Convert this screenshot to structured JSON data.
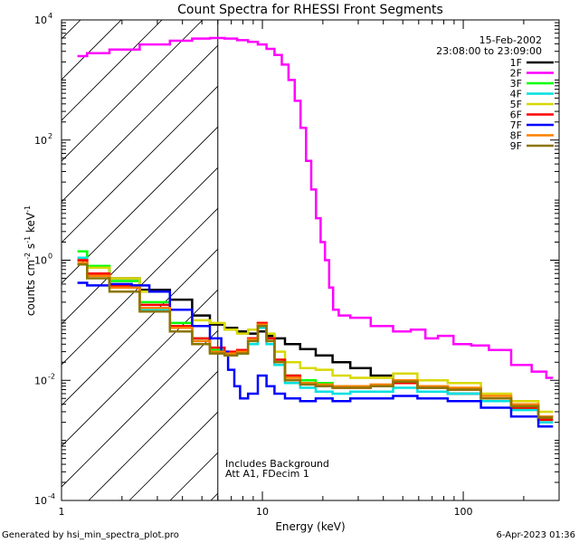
{
  "chart_data": {
    "type": "line",
    "title": "Count Spectra for RHESSI Front Segments",
    "xlabel": "Energy (keV)",
    "ylabel_parts": [
      "counts cm",
      "-2",
      " s",
      "-1",
      " keV",
      "-1"
    ],
    "x_scale": "log",
    "y_scale": "log",
    "xlim": [
      1,
      300
    ],
    "ylim": [
      0.0001,
      10000
    ],
    "x_tick_labels": [
      {
        "value": 1,
        "label": "1"
      },
      {
        "value": 10,
        "label": "10"
      },
      {
        "value": 100,
        "label": "100"
      }
    ],
    "y_tick_labels": [
      {
        "value": 10000,
        "base": "10",
        "exp": "4"
      },
      {
        "value": 100,
        "base": "10",
        "exp": "2"
      },
      {
        "value": 1,
        "base": "10",
        "exp": "0"
      },
      {
        "value": 0.01,
        "base": "10",
        "exp": "-2"
      },
      {
        "value": 0.0001,
        "base": "10",
        "exp": "-4"
      }
    ],
    "date": "15-Feb-2002",
    "time_range": "23:08:00 to 23:09:00",
    "annotations": [
      "Includes Background",
      "Att A1, FDecim  1"
    ],
    "attenuator_cutoff_kev": 6,
    "footer_left": "Generated by hsi_min_spectra_plot.pro",
    "footer_right": "6-Apr-2023 01:36",
    "series": [
      {
        "name": "1F",
        "color": "#000000",
        "points": [
          [
            1.2,
            1.0
          ],
          [
            1.5,
            0.75
          ],
          [
            2,
            0.5
          ],
          [
            3,
            0.32
          ],
          [
            4,
            0.22
          ],
          [
            5,
            0.12
          ],
          [
            6,
            0.085
          ],
          [
            7,
            0.075
          ],
          [
            8,
            0.065
          ],
          [
            9,
            0.06
          ],
          [
            10,
            0.065
          ],
          [
            11,
            0.055
          ],
          [
            12,
            0.05
          ],
          [
            14,
            0.04
          ],
          [
            17,
            0.033
          ],
          [
            20,
            0.026
          ],
          [
            25,
            0.02
          ],
          [
            30,
            0.016
          ],
          [
            40,
            0.012
          ],
          [
            50,
            0.01
          ],
          [
            70,
            0.008
          ],
          [
            100,
            0.006
          ],
          [
            150,
            0.0045
          ],
          [
            200,
            0.0035
          ],
          [
            280,
            0.0025
          ]
        ]
      },
      {
        "name": "2F",
        "color": "#ff00ff",
        "points": [
          [
            1.2,
            2500
          ],
          [
            1.5,
            2800
          ],
          [
            2,
            3200
          ],
          [
            3,
            3900
          ],
          [
            4,
            4500
          ],
          [
            5,
            4900
          ],
          [
            6,
            5000
          ],
          [
            7,
            4900
          ],
          [
            8,
            4600
          ],
          [
            9,
            4300
          ],
          [
            10,
            3900
          ],
          [
            11,
            3300
          ],
          [
            12,
            2600
          ],
          [
            13,
            1800
          ],
          [
            14,
            1000
          ],
          [
            15,
            450
          ],
          [
            16,
            160
          ],
          [
            17,
            45
          ],
          [
            18,
            15
          ],
          [
            19,
            5
          ],
          [
            20,
            2
          ],
          [
            21,
            1.0
          ],
          [
            22,
            0.35
          ],
          [
            23,
            0.15
          ],
          [
            25,
            0.12
          ],
          [
            30,
            0.11
          ],
          [
            40,
            0.08
          ],
          [
            50,
            0.065
          ],
          [
            60,
            0.07
          ],
          [
            70,
            0.05
          ],
          [
            80,
            0.055
          ],
          [
            100,
            0.04
          ],
          [
            120,
            0.038
          ],
          [
            150,
            0.032
          ],
          [
            200,
            0.018
          ],
          [
            240,
            0.014
          ],
          [
            280,
            0.011
          ]
        ]
      },
      {
        "name": "3F",
        "color": "#00ff00",
        "points": [
          [
            1.2,
            1.4
          ],
          [
            1.5,
            0.8
          ],
          [
            2,
            0.45
          ],
          [
            3,
            0.2
          ],
          [
            4,
            0.09
          ],
          [
            5,
            0.05
          ],
          [
            6,
            0.032
          ],
          [
            7,
            0.028
          ],
          [
            8,
            0.03
          ],
          [
            9,
            0.045
          ],
          [
            10,
            0.085
          ],
          [
            11,
            0.05
          ],
          [
            12,
            0.022
          ],
          [
            14,
            0.012
          ],
          [
            17,
            0.01
          ],
          [
            20,
            0.009
          ],
          [
            25,
            0.008
          ],
          [
            30,
            0.008
          ],
          [
            40,
            0.008
          ],
          [
            50,
            0.009
          ],
          [
            70,
            0.0075
          ],
          [
            100,
            0.007
          ],
          [
            150,
            0.005
          ],
          [
            200,
            0.0035
          ],
          [
            280,
            0.0022
          ]
        ]
      },
      {
        "name": "4F",
        "color": "#00e0e0",
        "points": [
          [
            1.2,
            1.1
          ],
          [
            1.5,
            0.6
          ],
          [
            2,
            0.35
          ],
          [
            3,
            0.15
          ],
          [
            4,
            0.075
          ],
          [
            5,
            0.045
          ],
          [
            6,
            0.03
          ],
          [
            7,
            0.026
          ],
          [
            8,
            0.028
          ],
          [
            9,
            0.04
          ],
          [
            10,
            0.075
          ],
          [
            11,
            0.04
          ],
          [
            12,
            0.018
          ],
          [
            14,
            0.009
          ],
          [
            17,
            0.0075
          ],
          [
            20,
            0.0065
          ],
          [
            25,
            0.006
          ],
          [
            30,
            0.0065
          ],
          [
            40,
            0.0065
          ],
          [
            50,
            0.0075
          ],
          [
            70,
            0.0065
          ],
          [
            100,
            0.006
          ],
          [
            150,
            0.0045
          ],
          [
            200,
            0.0032
          ],
          [
            280,
            0.002
          ]
        ]
      },
      {
        "name": "5F",
        "color": "#d8d800",
        "points": [
          [
            1.2,
            1.0
          ],
          [
            1.5,
            0.75
          ],
          [
            2,
            0.5
          ],
          [
            3,
            0.3
          ],
          [
            4,
            0.15
          ],
          [
            5,
            0.1
          ],
          [
            6,
            0.09
          ],
          [
            7,
            0.07
          ],
          [
            8,
            0.06
          ],
          [
            9,
            0.07
          ],
          [
            10,
            0.09
          ],
          [
            11,
            0.06
          ],
          [
            12,
            0.03
          ],
          [
            14,
            0.02
          ],
          [
            17,
            0.016
          ],
          [
            20,
            0.015
          ],
          [
            25,
            0.012
          ],
          [
            30,
            0.011
          ],
          [
            40,
            0.011
          ],
          [
            50,
            0.013
          ],
          [
            70,
            0.01
          ],
          [
            100,
            0.009
          ],
          [
            150,
            0.006
          ],
          [
            200,
            0.0045
          ],
          [
            280,
            0.003
          ]
        ]
      },
      {
        "name": "6F",
        "color": "#ff0000",
        "points": [
          [
            1.2,
            1.0
          ],
          [
            1.5,
            0.6
          ],
          [
            2,
            0.38
          ],
          [
            3,
            0.18
          ],
          [
            4,
            0.08
          ],
          [
            5,
            0.05
          ],
          [
            6,
            0.035
          ],
          [
            7,
            0.03
          ],
          [
            8,
            0.032
          ],
          [
            9,
            0.05
          ],
          [
            10,
            0.09
          ],
          [
            11,
            0.05
          ],
          [
            12,
            0.022
          ],
          [
            14,
            0.012
          ],
          [
            17,
            0.009
          ],
          [
            20,
            0.008
          ],
          [
            25,
            0.0075
          ],
          [
            30,
            0.0075
          ],
          [
            40,
            0.008
          ],
          [
            50,
            0.009
          ],
          [
            70,
            0.0075
          ],
          [
            100,
            0.007
          ],
          [
            150,
            0.005
          ],
          [
            200,
            0.0035
          ],
          [
            280,
            0.0022
          ]
        ]
      },
      {
        "name": "7F",
        "color": "#0000ff",
        "points": [
          [
            1.2,
            0.42
          ],
          [
            1.5,
            0.38
          ],
          [
            2,
            0.4
          ],
          [
            2.5,
            0.38
          ],
          [
            3,
            0.3
          ],
          [
            4,
            0.15
          ],
          [
            5,
            0.08
          ],
          [
            6,
            0.05
          ],
          [
            6.5,
            0.03
          ],
          [
            7,
            0.015
          ],
          [
            7.5,
            0.008
          ],
          [
            8,
            0.005
          ],
          [
            9,
            0.006
          ],
          [
            10,
            0.012
          ],
          [
            11,
            0.008
          ],
          [
            12,
            0.006
          ],
          [
            14,
            0.005
          ],
          [
            17,
            0.0045
          ],
          [
            20,
            0.005
          ],
          [
            25,
            0.0045
          ],
          [
            30,
            0.005
          ],
          [
            40,
            0.005
          ],
          [
            50,
            0.0055
          ],
          [
            70,
            0.005
          ],
          [
            100,
            0.0045
          ],
          [
            150,
            0.0035
          ],
          [
            200,
            0.0025
          ],
          [
            280,
            0.0017
          ]
        ]
      },
      {
        "name": "8F",
        "color": "#ff8000",
        "points": [
          [
            1.2,
            0.9
          ],
          [
            1.5,
            0.55
          ],
          [
            2,
            0.35
          ],
          [
            3,
            0.16
          ],
          [
            4,
            0.075
          ],
          [
            5,
            0.045
          ],
          [
            6,
            0.03
          ],
          [
            7,
            0.028
          ],
          [
            8,
            0.03
          ],
          [
            9,
            0.048
          ],
          [
            10,
            0.085
          ],
          [
            11,
            0.045
          ],
          [
            12,
            0.02
          ],
          [
            14,
            0.011
          ],
          [
            17,
            0.009
          ],
          [
            20,
            0.0085
          ],
          [
            25,
            0.008
          ],
          [
            30,
            0.008
          ],
          [
            40,
            0.0085
          ],
          [
            50,
            0.01
          ],
          [
            70,
            0.008
          ],
          [
            100,
            0.0075
          ],
          [
            150,
            0.0055
          ],
          [
            200,
            0.004
          ],
          [
            280,
            0.0025
          ]
        ]
      },
      {
        "name": "9F",
        "color": "#8b7500",
        "points": [
          [
            1.2,
            0.85
          ],
          [
            1.5,
            0.5
          ],
          [
            2,
            0.3
          ],
          [
            3,
            0.14
          ],
          [
            4,
            0.065
          ],
          [
            5,
            0.04
          ],
          [
            6,
            0.028
          ],
          [
            7,
            0.026
          ],
          [
            8,
            0.028
          ],
          [
            9,
            0.045
          ],
          [
            10,
            0.08
          ],
          [
            11,
            0.045
          ],
          [
            12,
            0.02
          ],
          [
            14,
            0.01
          ],
          [
            17,
            0.0085
          ],
          [
            20,
            0.008
          ],
          [
            25,
            0.0075
          ],
          [
            30,
            0.0075
          ],
          [
            40,
            0.008
          ],
          [
            50,
            0.0095
          ],
          [
            70,
            0.0075
          ],
          [
            100,
            0.007
          ],
          [
            150,
            0.005
          ],
          [
            200,
            0.0037
          ],
          [
            280,
            0.0024
          ]
        ]
      }
    ]
  }
}
